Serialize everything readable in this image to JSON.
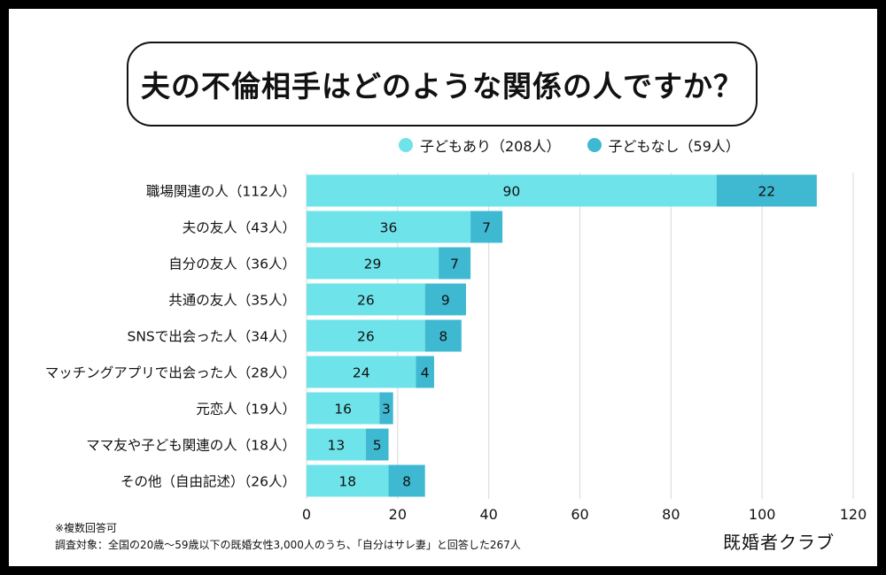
{
  "title": "夫の不倫相手はどのような関係の人ですか？",
  "legend": [
    {
      "label": "子どもあり（208人）",
      "color": "#6ee3ea"
    },
    {
      "label": "子どもなし（59人）",
      "color": "#3fb8d1"
    }
  ],
  "notes": {
    "line1": "※複数回答可",
    "line2": "調査対象：全国の20歳〜59歳以下の既婚女性3,000人のうち、「自分はサレ妻」と回答した267人"
  },
  "brand": "既婚者クラブ",
  "chart_data": {
    "type": "bar",
    "orientation": "horizontal",
    "stacked": true,
    "title": "夫の不倫相手はどのような関係の人ですか？",
    "categories": [
      "職場関連の人（112人）",
      "夫の友人（43人）",
      "自分の友人（36人）",
      "共通の友人（35人）",
      "SNSで出会った人（34人）",
      "マッチングアプリで出会った人（28人）",
      "元恋人（19人）",
      "ママ友や子ども関連の人（18人）",
      "その他（自由記述）（26人）"
    ],
    "series": [
      {
        "name": "子どもあり（208人）",
        "color": "#6ee3ea",
        "values": [
          90,
          36,
          29,
          26,
          26,
          24,
          16,
          13,
          18
        ]
      },
      {
        "name": "子どもなし（59人）",
        "color": "#3fb8d1",
        "values": [
          22,
          7,
          7,
          9,
          8,
          4,
          3,
          5,
          8
        ]
      }
    ],
    "xlim": [
      0,
      120
    ],
    "xticks": [
      0,
      20,
      40,
      60,
      80,
      100,
      120
    ],
    "grid": true,
    "legend_position": "top"
  }
}
